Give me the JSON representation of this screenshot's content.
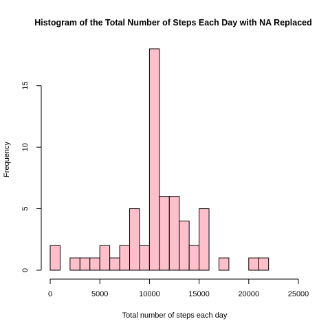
{
  "chart_data": {
    "type": "bar",
    "title": "Histogram of the Total Number of Steps Each Day with NA Replaced",
    "xlabel": "Total number of steps each day",
    "ylabel": "Frequency",
    "bin_width": 1000,
    "bins": [
      {
        "start": 0,
        "end": 1000,
        "count": 2
      },
      {
        "start": 1000,
        "end": 2000,
        "count": 0
      },
      {
        "start": 2000,
        "end": 3000,
        "count": 1
      },
      {
        "start": 3000,
        "end": 4000,
        "count": 1
      },
      {
        "start": 4000,
        "end": 5000,
        "count": 1
      },
      {
        "start": 5000,
        "end": 6000,
        "count": 2
      },
      {
        "start": 6000,
        "end": 7000,
        "count": 1
      },
      {
        "start": 7000,
        "end": 8000,
        "count": 2
      },
      {
        "start": 8000,
        "end": 9000,
        "count": 5
      },
      {
        "start": 9000,
        "end": 10000,
        "count": 2
      },
      {
        "start": 10000,
        "end": 11000,
        "count": 18
      },
      {
        "start": 11000,
        "end": 12000,
        "count": 6
      },
      {
        "start": 12000,
        "end": 13000,
        "count": 6
      },
      {
        "start": 13000,
        "end": 14000,
        "count": 4
      },
      {
        "start": 14000,
        "end": 15000,
        "count": 2
      },
      {
        "start": 15000,
        "end": 16000,
        "count": 5
      },
      {
        "start": 16000,
        "end": 17000,
        "count": 0
      },
      {
        "start": 17000,
        "end": 18000,
        "count": 1
      },
      {
        "start": 18000,
        "end": 19000,
        "count": 0
      },
      {
        "start": 19000,
        "end": 20000,
        "count": 0
      },
      {
        "start": 20000,
        "end": 21000,
        "count": 1
      },
      {
        "start": 21000,
        "end": 22000,
        "count": 1
      }
    ],
    "xlim": [
      0,
      25000
    ],
    "ylim": [
      0,
      18
    ],
    "x_ticks": [
      0,
      5000,
      10000,
      15000,
      20000,
      25000
    ],
    "y_ticks": [
      0,
      5,
      10,
      15
    ],
    "grid": false,
    "colors": {
      "bar_fill": "#FFC0CB",
      "bar_stroke": "#000000"
    }
  }
}
